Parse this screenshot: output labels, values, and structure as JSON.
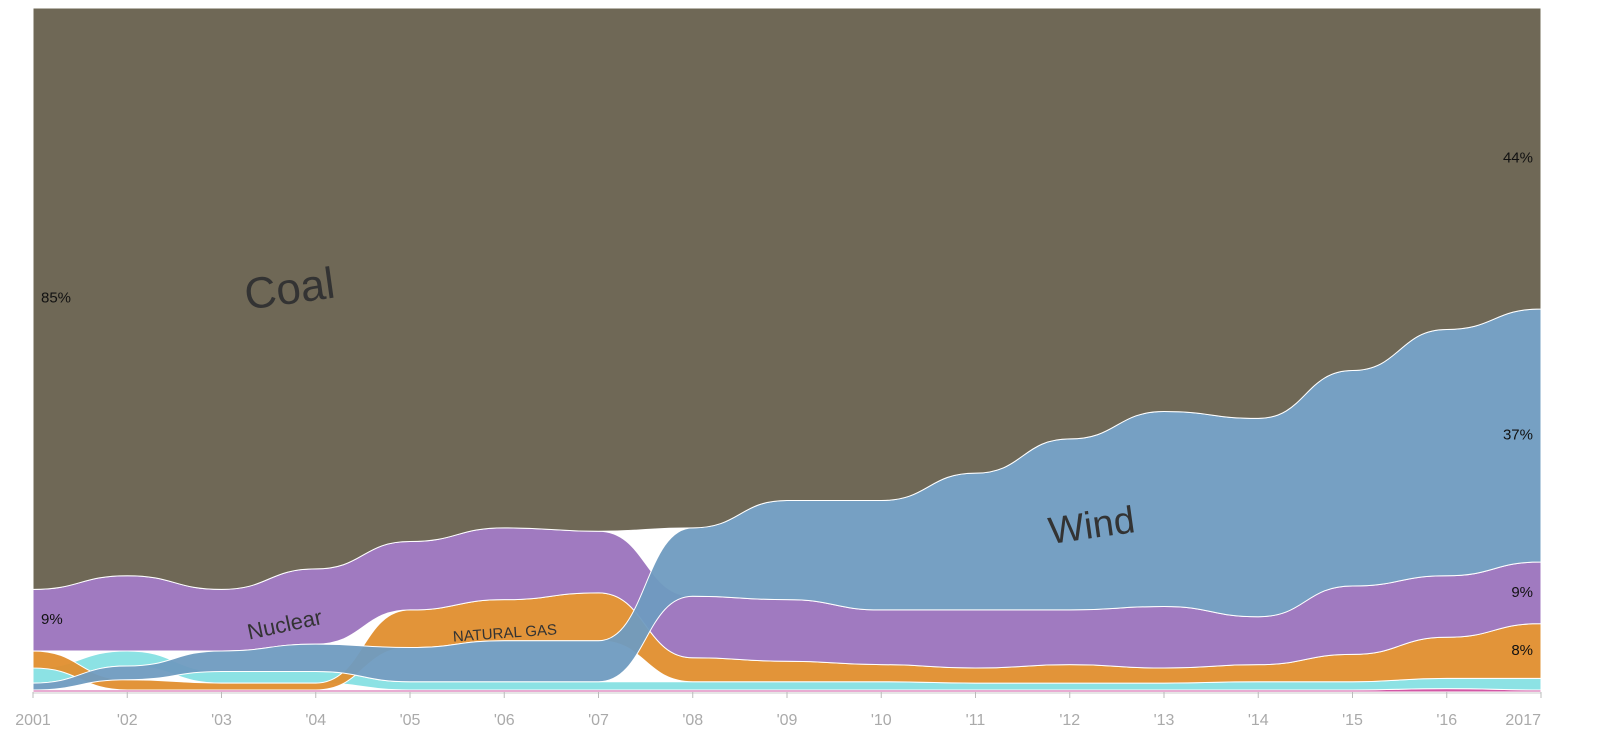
{
  "chart_data": {
    "type": "ranked-stream",
    "categories": [
      "2001",
      "'02",
      "'03",
      "'04",
      "'05",
      "'06",
      "'07",
      "'08",
      "'09",
      "'10",
      "'11",
      "'12",
      "'13",
      "'14",
      "'15",
      "'16",
      "2017"
    ],
    "ylim": [
      0,
      100
    ],
    "series": [
      {
        "name": "Coal",
        "color": "#67604d",
        "values": [
          85,
          83,
          85,
          82,
          78,
          76,
          76.5,
          76,
          72,
          72,
          68,
          63,
          59,
          60,
          53,
          47,
          44
        ],
        "value_labels": [
          "85%",
          null,
          null,
          null,
          null,
          null,
          null,
          null,
          null,
          null,
          null,
          null,
          null,
          null,
          null,
          null,
          "44%"
        ]
      },
      {
        "name": "Wind",
        "color": "#6f9bc0",
        "values": [
          1,
          2,
          3,
          4,
          5,
          6,
          6,
          10,
          14.5,
          16,
          20,
          25,
          28.5,
          29,
          31.5,
          36,
          37
        ],
        "value_labels": [
          null,
          null,
          null,
          null,
          null,
          null,
          null,
          null,
          null,
          null,
          null,
          null,
          null,
          null,
          null,
          null,
          "37%"
        ]
      },
      {
        "name": "Nuclear",
        "color": "#9b73bd",
        "values": [
          9,
          11,
          9,
          11,
          10,
          10.5,
          9,
          9,
          9,
          8,
          8.5,
          8,
          9,
          7,
          10,
          9,
          9
        ],
        "value_labels": [
          "9%",
          null,
          null,
          null,
          null,
          null,
          null,
          null,
          null,
          null,
          null,
          null,
          null,
          null,
          null,
          null,
          "9%"
        ]
      },
      {
        "name": "NATURAL GAS",
        "color": "#e08e2e",
        "values": [
          2.5,
          1.5,
          1,
          1,
          5.5,
          6,
          7,
          3.5,
          3,
          2.5,
          2.2,
          2.7,
          2.2,
          2.5,
          4,
          6,
          8
        ],
        "value_labels": [
          null,
          null,
          null,
          null,
          null,
          null,
          null,
          null,
          null,
          null,
          null,
          null,
          null,
          null,
          null,
          null,
          "8%"
        ]
      },
      {
        "color": "#86e0e3",
        "values": [
          2.2,
          2.2,
          1.7,
          1.7,
          1.2,
          1.2,
          1.2,
          1.2,
          1.2,
          1.2,
          1,
          1,
          1,
          1.2,
          1.2,
          1.5,
          1.7
        ]
      },
      {
        "color": "#d04fa0",
        "values": [
          0.3,
          0.3,
          0.3,
          0.3,
          0.3,
          0.3,
          0.3,
          0.3,
          0.3,
          0.3,
          0.3,
          0.3,
          0.3,
          0.3,
          0.3,
          0.5,
          0.3
        ]
      }
    ]
  }
}
